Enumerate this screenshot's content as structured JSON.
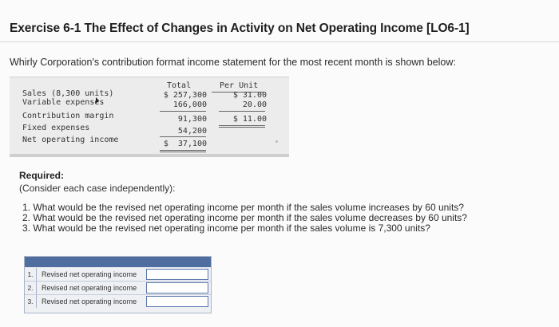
{
  "title": "Exercise 6-1 The Effect of Changes in Activity on Net Operating Income [LO6-1]",
  "intro": "Whirly Corporation's contribution format income statement for the most recent month is shown below:",
  "statement": {
    "header_total": "Total",
    "header_per_unit": "Per Unit",
    "rows": [
      {
        "label": "Sales (8,300 units)",
        "total": "$ 257,300",
        "per_unit": "$ 31.00"
      },
      {
        "label": "Variable expenses",
        "total": "166,000",
        "per_unit": "20.00"
      },
      {
        "label": "Contribution margin",
        "total": "91,300",
        "per_unit": "$ 11.00"
      },
      {
        "label": "Fixed expenses",
        "total": "54,200",
        "per_unit": ""
      },
      {
        "label": "Net operating income",
        "total": "$  37,100",
        "per_unit": ""
      }
    ]
  },
  "required": {
    "label": "Required:",
    "sub": "(Consider each case independently):",
    "questions": [
      "1. What would be the revised net operating income per month if the sales volume increases by 60 units?",
      "2. What would be the revised net operating income per month if the sales volume decreases by 60 units?",
      "3. What would be the revised net operating income per month if the sales volume is 7,300 units?"
    ]
  },
  "answers": [
    {
      "num": "1.",
      "label": "Revised net operating income",
      "value": ""
    },
    {
      "num": "2.",
      "label": "Revised net operating income",
      "value": ""
    },
    {
      "num": "3.",
      "label": "Revised net operating income",
      "value": ""
    }
  ]
}
